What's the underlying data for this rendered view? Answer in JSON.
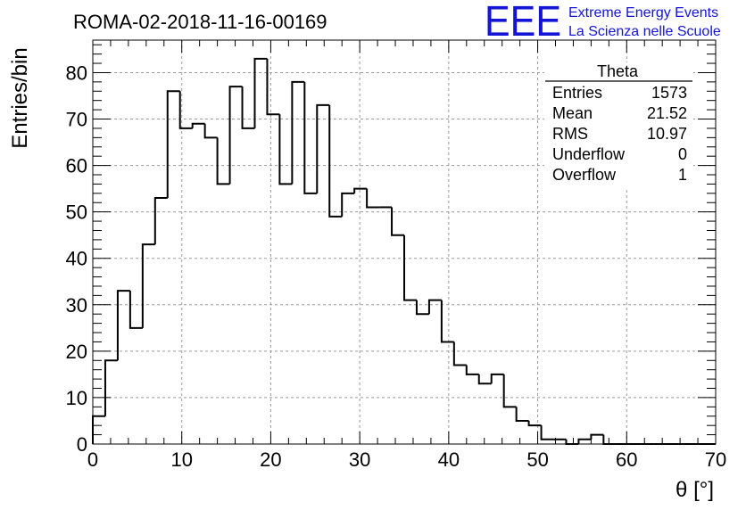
{
  "title": "ROMA-02-2018-11-16-00169",
  "logo": {
    "mark": "EEE",
    "line1": "Extreme Energy Events",
    "line2": "La Scienza nelle Scuole",
    "color": "#1414d6"
  },
  "stats_box": {
    "name": "Theta",
    "rows": [
      {
        "label": "Entries",
        "value": "1573"
      },
      {
        "label": "Mean",
        "value": "21.52"
      },
      {
        "label": "RMS",
        "value": "10.97"
      },
      {
        "label": "Underflow",
        "value": "0"
      },
      {
        "label": "Overflow",
        "value": "1"
      }
    ]
  },
  "chart_data": {
    "type": "bar",
    "histogram": true,
    "xlabel": "θ [°]",
    "ylabel": "Entries/bin",
    "xlim": [
      0,
      70
    ],
    "ylim": [
      0,
      87
    ],
    "bin_width": 1.4,
    "xticks": [
      0,
      10,
      20,
      30,
      40,
      50,
      60,
      70
    ],
    "yticks": [
      0,
      10,
      20,
      30,
      40,
      50,
      60,
      70,
      80
    ],
    "grid": true,
    "x": [
      0.7,
      2.1,
      3.5,
      4.9,
      6.3,
      7.7,
      9.1,
      10.5,
      11.9,
      13.3,
      14.7,
      16.1,
      17.5,
      18.9,
      20.3,
      21.7,
      23.1,
      24.5,
      25.9,
      27.3,
      28.7,
      30.1,
      31.5,
      32.9,
      34.3,
      35.7,
      37.1,
      38.5,
      39.9,
      41.3,
      42.7,
      44.1,
      45.5,
      46.9,
      48.3,
      49.7,
      51.1,
      52.5,
      53.9,
      55.3,
      56.7,
      58.1,
      59.5,
      60.9,
      62.3,
      63.7,
      65.1,
      66.5,
      67.9,
      69.3
    ],
    "values": [
      6,
      18,
      33,
      25,
      43,
      53,
      76,
      68,
      69,
      66,
      56,
      77,
      68,
      83,
      71,
      56,
      78,
      54,
      73,
      49,
      54,
      55,
      51,
      51,
      45,
      31,
      28,
      31,
      22,
      17,
      15,
      13,
      15,
      8,
      5,
      4,
      1,
      1,
      0,
      1,
      2,
      0,
      0,
      0,
      0,
      0,
      0,
      0,
      0,
      0
    ],
    "line_color": "#000000",
    "grid_color": "#9a9a9a"
  }
}
